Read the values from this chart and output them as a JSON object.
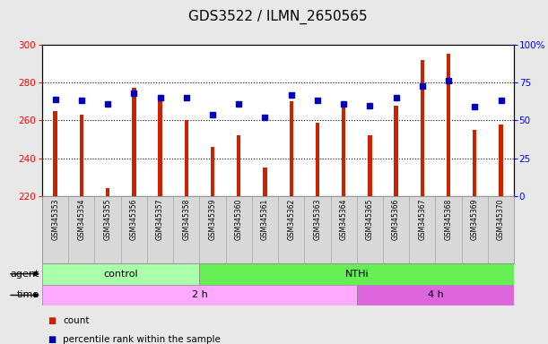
{
  "title": "GDS3522 / ILMN_2650565",
  "samples": [
    "GSM345353",
    "GSM345354",
    "GSM345355",
    "GSM345356",
    "GSM345357",
    "GSM345358",
    "GSM345359",
    "GSM345360",
    "GSM345361",
    "GSM345362",
    "GSM345363",
    "GSM345364",
    "GSM345365",
    "GSM345366",
    "GSM345367",
    "GSM345368",
    "GSM345369",
    "GSM345370"
  ],
  "counts": [
    265,
    263,
    224,
    277,
    270,
    260,
    246,
    252,
    235,
    270,
    259,
    270,
    252,
    268,
    292,
    295,
    255,
    258
  ],
  "percentile_ranks": [
    64,
    63,
    61,
    68,
    65,
    65,
    54,
    61,
    52,
    67,
    63,
    61,
    60,
    65,
    73,
    76,
    59,
    63
  ],
  "ylim_left": [
    220,
    300
  ],
  "ylim_right": [
    0,
    100
  ],
  "yticks_left": [
    220,
    240,
    260,
    280,
    300
  ],
  "yticks_right": [
    0,
    25,
    50,
    75,
    100
  ],
  "yticklabels_right": [
    "0",
    "25",
    "50",
    "75",
    "100%"
  ],
  "bar_color": "#cc2200",
  "dot_color": "#0000bb",
  "grid_color": "#000000",
  "bg_color": "#e8e8e8",
  "plot_bg": "#ffffff",
  "xlabels_bg": "#d8d8d8",
  "agent_groups": [
    {
      "label": "control",
      "start": 0,
      "end": 6,
      "color": "#aaffaa"
    },
    {
      "label": "NTHi",
      "start": 6,
      "end": 18,
      "color": "#66ee55"
    }
  ],
  "time_groups": [
    {
      "label": "2 h",
      "start": 0,
      "end": 12,
      "color": "#ffaaff"
    },
    {
      "label": "4 h",
      "start": 12,
      "end": 18,
      "color": "#dd66dd"
    }
  ],
  "legend_items": [
    {
      "label": "count",
      "color": "#cc2200"
    },
    {
      "label": "percentile rank within the sample",
      "color": "#0000bb"
    }
  ],
  "title_fontsize": 11,
  "tick_fontsize": 7.5,
  "label_fontsize": 8,
  "bar_width": 0.15
}
